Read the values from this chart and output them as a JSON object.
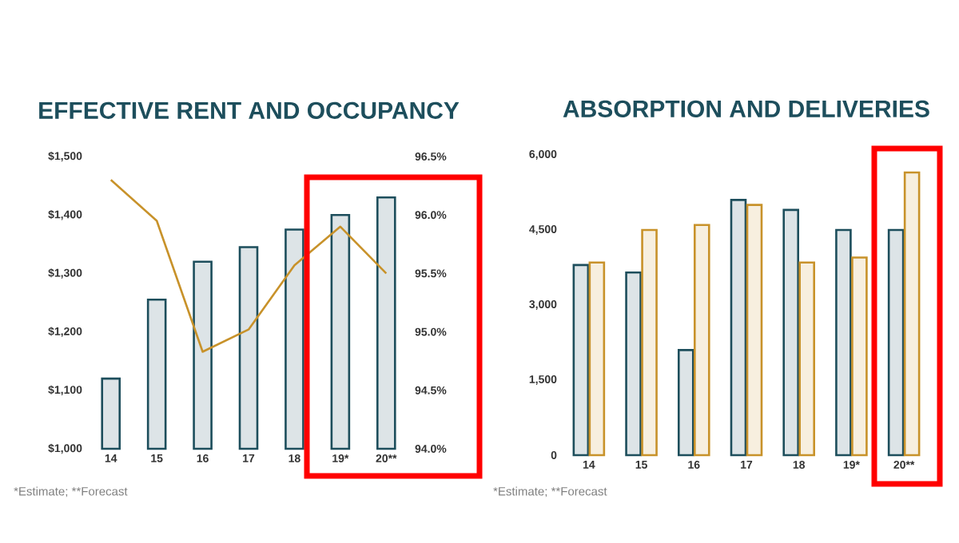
{
  "chart_data": [
    {
      "type": "bar",
      "title": "EFFECTIVE RENT AND OCCUPANCY",
      "categories": [
        "14",
        "15",
        "16",
        "17",
        "18",
        "19*",
        "20**"
      ],
      "series": [
        {
          "type": "bar",
          "color": "#1d4e5c",
          "values": [
            1120,
            1255,
            1320,
            1345,
            1375,
            1400,
            1430
          ]
        },
        {
          "type": "line",
          "axis": "y2",
          "color": "#c8922a",
          "values": [
            96.3,
            95.95,
            94.83,
            95.02,
            95.57,
            95.9,
            95.5
          ]
        }
      ],
      "ylim": [
        1000,
        1500
      ],
      "yticks": [
        {
          "value": 1000,
          "label": "$1,000"
        },
        {
          "value": 1100,
          "label": "$1,100"
        },
        {
          "value": 1200,
          "label": "$1,200"
        },
        {
          "value": 1300,
          "label": "$1,300"
        },
        {
          "value": 1400,
          "label": "$1,400"
        },
        {
          "value": 1500,
          "label": "$1,500"
        }
      ],
      "y2lim": [
        94,
        96.5
      ],
      "y2ticks": [
        {
          "value": 94,
          "label": "94.0%"
        },
        {
          "value": 94.5,
          "label": "94.5%"
        },
        {
          "value": 95,
          "label": "95.0%"
        },
        {
          "value": 95.5,
          "label": "95.5%"
        },
        {
          "value": 96,
          "label": "96.0%"
        },
        {
          "value": 96.5,
          "label": "96.5%"
        }
      ],
      "annotations": [
        "*Estimate; **Forecast"
      ]
    },
    {
      "type": "bar",
      "title": "ABSORPTION AND DELIVERIES",
      "categories": [
        "14",
        "15",
        "16",
        "17",
        "18",
        "19*",
        "20**"
      ],
      "series": [
        {
          "color": "#1d4e5c",
          "values": [
            3800,
            3650,
            2100,
            5100,
            4900,
            4500,
            4500
          ]
        },
        {
          "color": "#c8922a",
          "values": [
            3850,
            4500,
            4600,
            5000,
            3850,
            3950,
            5650
          ]
        }
      ],
      "ylim": [
        0,
        6000
      ],
      "yticks": [
        0,
        {
          "value": 1500,
          "label": "1,500"
        },
        {
          "value": 3000,
          "label": "3,000"
        },
        {
          "value": 4500,
          "label": "4,500"
        },
        {
          "value": 6000,
          "label": "6,000"
        }
      ],
      "annotations": [
        "*Estimate; **Forecast"
      ]
    }
  ]
}
